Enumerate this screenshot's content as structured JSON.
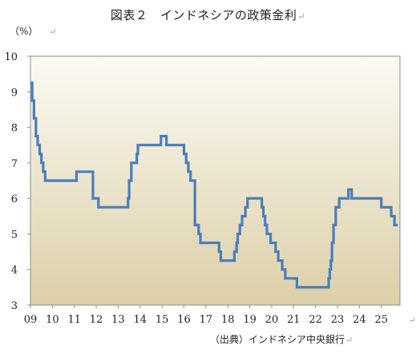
{
  "title": "図表２　インドネシアの政策金利",
  "return_mark": "↵",
  "unit_label": "（%）",
  "source_label": "（出典）インドネシア中央銀行",
  "chart_data": {
    "type": "line",
    "title": "図表２　インドネシアの政策金利",
    "ylabel": "（%）",
    "xlabel": "",
    "ylim": [
      3,
      10
    ],
    "xlim": [
      2009.0,
      2025.85
    ],
    "yticks": [
      "3",
      "4",
      "5",
      "6",
      "7",
      "8",
      "9",
      "10"
    ],
    "xticks": [
      "09",
      "10",
      "11",
      "12",
      "13",
      "14",
      "15",
      "16",
      "17",
      "18",
      "19",
      "20",
      "21",
      "22",
      "23",
      "24",
      "25"
    ],
    "grid": false,
    "line_color": "#4a7ebb",
    "background_gradient": [
      "#fbfaf3",
      "#dccfa8"
    ],
    "series": [
      {
        "style": "step",
        "x": [
          2009.0,
          2009.08,
          2009.16,
          2009.25,
          2009.33,
          2009.42,
          2009.5,
          2009.58,
          2009.67,
          2011.1,
          2011.85,
          2012.1,
          2013.45,
          2013.5,
          2013.6,
          2013.85,
          2013.9,
          2014.0,
          2014.95,
          2015.2,
          2016.0,
          2016.1,
          2016.2,
          2016.3,
          2016.5,
          2016.67,
          2016.75,
          2016.83,
          2016.92,
          2017.6,
          2017.68,
          2017.75,
          2018.3,
          2018.4,
          2018.45,
          2018.55,
          2018.65,
          2018.8,
          2018.9,
          2019.55,
          2019.62,
          2019.7,
          2019.78,
          2019.95,
          2020.18,
          2020.3,
          2020.48,
          2020.62,
          2020.88,
          2021.15,
          2022.6,
          2022.65,
          2022.7,
          2022.75,
          2022.82,
          2022.92,
          2023.08,
          2023.5,
          2023.65,
          2024.0,
          2025.0,
          2025.45,
          2025.6,
          2025.75
        ],
        "values": [
          9.25,
          8.75,
          8.25,
          7.75,
          7.5,
          7.25,
          7.0,
          6.75,
          6.5,
          6.75,
          6.0,
          5.75,
          6.0,
          6.5,
          7.0,
          7.25,
          7.5,
          7.5,
          7.75,
          7.5,
          7.25,
          7.0,
          6.75,
          6.5,
          5.25,
          5.0,
          4.75,
          4.75,
          4.75,
          4.5,
          4.25,
          4.25,
          4.5,
          4.75,
          5.0,
          5.25,
          5.5,
          5.75,
          6.0,
          5.75,
          5.5,
          5.25,
          5.0,
          4.75,
          4.5,
          4.25,
          4.0,
          3.75,
          3.75,
          3.5,
          3.75,
          4.0,
          4.25,
          4.75,
          5.25,
          5.75,
          6.0,
          6.25,
          6.0,
          6.0,
          5.75,
          5.5,
          5.25,
          5.25
        ]
      }
    ]
  }
}
